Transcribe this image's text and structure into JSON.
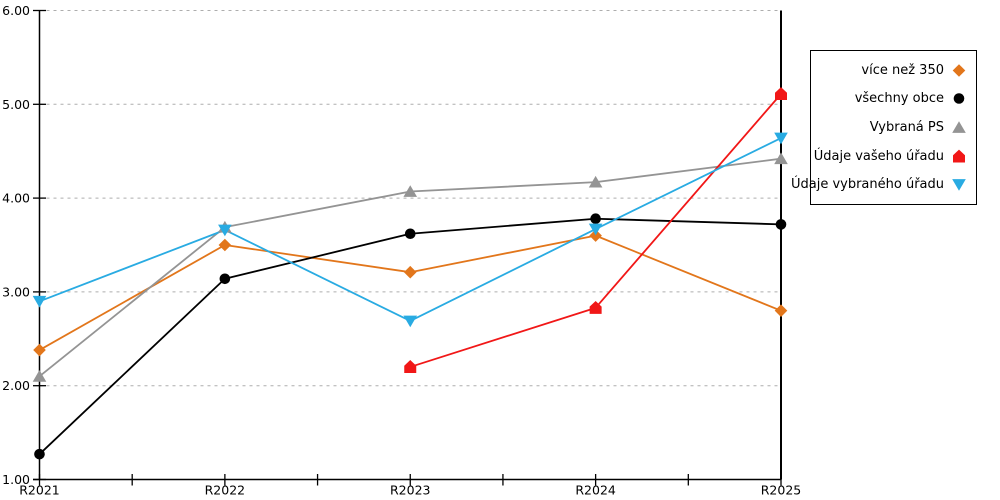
{
  "chart_data": {
    "type": "line",
    "title": "",
    "xlabel": "",
    "ylabel": "",
    "categories": [
      "R2021",
      "R2022",
      "R2023",
      "R2024",
      "R2025"
    ],
    "series": [
      {
        "name": "více než 350",
        "marker": "diamond",
        "color": "#E2761B",
        "values": [
          2.38,
          3.5,
          3.21,
          3.6,
          2.8
        ]
      },
      {
        "name": "všechny obce",
        "marker": "circle",
        "color": "#000000",
        "values": [
          1.27,
          3.14,
          3.62,
          3.78,
          3.72
        ]
      },
      {
        "name": "Vybraná PS",
        "marker": "triangle-up",
        "color": "#949494",
        "values": [
          2.1,
          3.69,
          4.07,
          4.17,
          4.42
        ]
      },
      {
        "name": "Údaje vašeho úřadu",
        "marker": "pentagon",
        "color": "#F11717",
        "values": [
          null,
          null,
          2.2,
          2.83,
          5.11
        ]
      },
      {
        "name": "Údaje vybraného úřadu",
        "marker": "triangle-down",
        "color": "#29ABE2",
        "values": [
          2.9,
          3.66,
          2.69,
          3.67,
          4.64
        ]
      }
    ],
    "ylim": [
      1,
      6
    ],
    "ytick_labels": [
      "1.00",
      "2.00",
      "3.00",
      "4.00",
      "5.00",
      "6.00"
    ],
    "grid": "horizontal-dashed",
    "gridline_color": "#ADADAD",
    "axis_color": "#000000",
    "legend_position": "right",
    "legend_border_color": "#000000",
    "background_color": "#ffffff"
  }
}
